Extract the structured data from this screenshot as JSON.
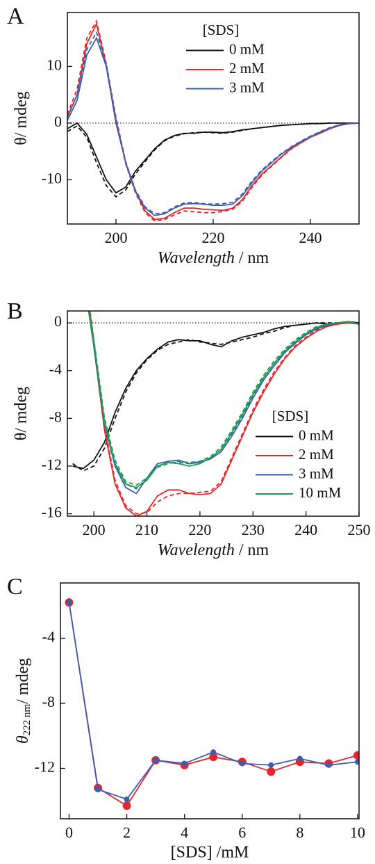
{
  "chart_data": [
    {
      "type": "line",
      "panel": "A",
      "ylabel": "θ/ mdeg",
      "xlabel_parts": [
        "Wavelength",
        "/ nm"
      ],
      "legend_title": "[SDS]",
      "legend": "upper right",
      "zero_line": true,
      "xlim": [
        190,
        250
      ],
      "ylim": [
        -17.8,
        19.5
      ],
      "xticks": [
        200,
        220,
        240
      ],
      "yticks": [
        10,
        0,
        -10
      ],
      "x": [
        190,
        192,
        194,
        196,
        198,
        200,
        202,
        204,
        206,
        208,
        210,
        212,
        214,
        216,
        218,
        220,
        222,
        224,
        226,
        228,
        230,
        232,
        234,
        236,
        238,
        240,
        242,
        244,
        246,
        248,
        250
      ],
      "series": [
        {
          "name": "0 mM",
          "color": "#111111",
          "dash": false,
          "values": [
            -1,
            0,
            -2,
            -6,
            -10,
            -12.3,
            -11.3,
            -8.5,
            -6.5,
            -4.5,
            -3,
            -2.2,
            -1.8,
            -1.8,
            -1.6,
            -1.6,
            -1.7,
            -1.5,
            -1.2,
            -1,
            -0.8,
            -0.6,
            -0.4,
            -0.3,
            -0.2,
            -0.1,
            -0.1,
            0,
            0,
            0,
            0
          ]
        },
        {
          "color": "#111111",
          "dash": true,
          "values": [
            -1.5,
            -0.5,
            -2.5,
            -7,
            -11,
            -13,
            -11.8,
            -9,
            -6.8,
            -4.7,
            -3.1,
            -2.3,
            -1.9,
            -1.7,
            -1.6,
            -1.7,
            -1.8,
            -1.6,
            -1.3,
            -1,
            -0.8,
            -0.6,
            -0.4,
            -0.3,
            -0.2,
            -0.1,
            -0.1,
            0,
            0,
            0,
            0
          ]
        },
        {
          "name": "2 mM",
          "color": "#e8262a",
          "dash": false,
          "values": [
            1,
            5,
            14,
            17.5,
            10,
            0,
            -7,
            -12,
            -15.5,
            -17,
            -16.8,
            -15.8,
            -15,
            -15,
            -15.2,
            -15.3,
            -15.4,
            -15,
            -13.5,
            -11,
            -9,
            -7.5,
            -6,
            -4.5,
            -3.5,
            -2.5,
            -1.8,
            -1,
            -0.4,
            -0.1,
            0
          ]
        },
        {
          "color": "#e8262a",
          "dash": true,
          "values": [
            1.5,
            6,
            15,
            18,
            10.5,
            0.5,
            -7.2,
            -12.3,
            -15.8,
            -17.3,
            -17,
            -16.2,
            -15.5,
            -15.6,
            -15.8,
            -15.8,
            -15.6,
            -15.2,
            -13.8,
            -11.3,
            -9.2,
            -7.6,
            -6.1,
            -4.6,
            -3.5,
            -2.5,
            -1.7,
            -1,
            -0.4,
            -0.1,
            0
          ]
        },
        {
          "name": "3 mM",
          "color": "#3a5fb0",
          "dash": false,
          "values": [
            0.5,
            4,
            12,
            15,
            10,
            0.5,
            -7,
            -12,
            -15,
            -16.3,
            -16,
            -15,
            -14.3,
            -14.2,
            -14.3,
            -14.5,
            -14.5,
            -14.3,
            -12.8,
            -10.5,
            -8.5,
            -7,
            -5.5,
            -4.3,
            -3.3,
            -2.4,
            -1.6,
            -0.9,
            -0.3,
            -0.1,
            0
          ]
        },
        {
          "color": "#3a5fb0",
          "dash": true,
          "values": [
            1,
            5,
            13,
            16,
            10.5,
            1,
            -6.8,
            -11.8,
            -14.8,
            -16,
            -15.8,
            -14.8,
            -14.1,
            -14,
            -14.2,
            -14.3,
            -14.2,
            -14,
            -12.5,
            -10.2,
            -8.3,
            -6.8,
            -5.4,
            -4.2,
            -3.2,
            -2.3,
            -1.5,
            -0.8,
            -0.3,
            -0.1,
            0
          ]
        }
      ]
    },
    {
      "type": "line",
      "panel": "B",
      "ylabel": "θ/ mdeg",
      "xlabel_parts": [
        "Wavelength",
        "/ nm"
      ],
      "legend_title": "[SDS]",
      "legend": "lower right",
      "zero_line": true,
      "xlim": [
        195,
        250
      ],
      "ylim": [
        -16.2,
        1
      ],
      "xticks": [
        200,
        210,
        220,
        230,
        240,
        250
      ],
      "yticks": [
        0,
        -4,
        -8,
        -12,
        -16
      ],
      "x": [
        196,
        198,
        200,
        202,
        204,
        206,
        208,
        210,
        212,
        214,
        216,
        218,
        220,
        222,
        224,
        226,
        228,
        230,
        232,
        234,
        236,
        238,
        240,
        242,
        244,
        246,
        248,
        250
      ],
      "series": [
        {
          "name": "0 mM",
          "color": "#111111",
          "dash": false,
          "values": [
            -12,
            -12.2,
            -11.5,
            -10,
            -7.5,
            -5.5,
            -4,
            -3,
            -2.2,
            -1.6,
            -1.4,
            -1.5,
            -1.5,
            -1.8,
            -2,
            -1.5,
            -1.2,
            -1,
            -0.8,
            -0.5,
            -0.3,
            -0.2,
            -0.1,
            0,
            -0.1,
            0,
            0.1,
            0
          ]
        },
        {
          "color": "#111111",
          "dash": true,
          "values": [
            -11.8,
            -12.4,
            -12,
            -10.5,
            -8,
            -5.8,
            -4.2,
            -3.1,
            -2.3,
            -1.8,
            -1.6,
            -1.4,
            -1.6,
            -1.7,
            -1.8,
            -1.6,
            -1.4,
            -1.2,
            -0.9,
            -0.7,
            -0.4,
            -0.2,
            -0.1,
            0,
            0,
            0,
            0.1,
            0
          ]
        },
        {
          "name": "2 mM",
          "color": "#e8262a",
          "dash": false,
          "values": [
            null,
            5,
            -2,
            -9,
            -13.5,
            -15.5,
            -16.2,
            -15.8,
            -14.5,
            -14,
            -14,
            -14.3,
            -14.4,
            -14.3,
            -13.5,
            -11.5,
            -9.5,
            -7.5,
            -5.8,
            -4.3,
            -3,
            -2,
            -1.3,
            -0.7,
            -0.3,
            -0.1,
            0,
            -0.1
          ]
        },
        {
          "color": "#e8262a",
          "dash": true,
          "values": [
            null,
            5.5,
            -1.5,
            -8.7,
            -13.2,
            -15.3,
            -16,
            -15.9,
            -15,
            -14.5,
            -14.3,
            -14.3,
            -14.2,
            -14.1,
            -13.3,
            -11.3,
            -9.3,
            -7.3,
            -5.6,
            -4.1,
            -2.9,
            -1.9,
            -1.2,
            -0.6,
            -0.2,
            0,
            0.1,
            -0.1
          ]
        },
        {
          "name": "3 mM",
          "color": "#3a5fb0",
          "dash": false,
          "values": [
            null,
            4,
            -2,
            -8.5,
            -12,
            -13.8,
            -14.3,
            -13,
            -11.8,
            -11.6,
            -11.5,
            -11.8,
            -11.7,
            -11.4,
            -10.8,
            -9.5,
            -8,
            -6.3,
            -4.8,
            -3.6,
            -2.5,
            -1.7,
            -1,
            -0.5,
            -0.2,
            0,
            0.1,
            -0.1
          ]
        },
        {
          "color": "#3a5fb0",
          "dash": true,
          "values": [
            null,
            4.5,
            -1.6,
            -8.2,
            -11.8,
            -13.5,
            -13.9,
            -13,
            -12,
            -11.7,
            -11.7,
            -11.8,
            -11.6,
            -11.3,
            -10.6,
            -9.3,
            -7.8,
            -6.1,
            -4.6,
            -3.4,
            -2.3,
            -1.5,
            -0.9,
            -0.4,
            -0.1,
            0,
            0.1,
            -0.1
          ]
        },
        {
          "name": "10 mM",
          "color": "#1aa050",
          "dash": false,
          "values": [
            null,
            4.2,
            -1.8,
            -8.3,
            -11.8,
            -13.5,
            -13.8,
            -13.2,
            -12,
            -11.7,
            -11.8,
            -12,
            -11.8,
            -11.3,
            -10.6,
            -9.2,
            -7.7,
            -6,
            -4.6,
            -3.4,
            -2.4,
            -1.6,
            -0.9,
            -0.4,
            -0.1,
            0,
            0.1,
            -0.1
          ]
        },
        {
          "color": "#1aa050",
          "dash": true,
          "values": [
            null,
            4.6,
            -1.4,
            -8,
            -11.5,
            -13.3,
            -13.6,
            -13,
            -12.1,
            -11.8,
            -11.6,
            -11.7,
            -11.6,
            -11.2,
            -10.4,
            -9,
            -7.5,
            -5.8,
            -4.4,
            -3.2,
            -2.2,
            -1.4,
            -0.8,
            -0.3,
            -0.1,
            0,
            0.1,
            -0.1
          ]
        }
      ]
    },
    {
      "type": "line",
      "panel": "C",
      "ylabel_parts": [
        "θ",
        "222 nm",
        "/ mdeg"
      ],
      "xlabel": "[SDS] /mM",
      "markers": true,
      "xlim": [
        -0.3,
        10.05
      ],
      "ylim": [
        -15.1,
        -0.6
      ],
      "xticks": [
        0,
        2,
        4,
        6,
        8,
        10
      ],
      "yticks": [
        -4,
        -8,
        -12
      ],
      "x": [
        0,
        1,
        2,
        3,
        4,
        5,
        6,
        7,
        8,
        9,
        10
      ],
      "series": [
        {
          "color": "#e8262a",
          "marker_size": 6,
          "values": [
            -1.8,
            -13.2,
            -14.3,
            -11.5,
            -11.8,
            -11.3,
            -11.6,
            -12.2,
            -11.6,
            -11.7,
            -11.2
          ]
        },
        {
          "color": "#3a5fb0",
          "marker_size": 4,
          "values": [
            -1.8,
            -13.3,
            -13.9,
            -11.5,
            -11.7,
            -11,
            -11.7,
            -11.8,
            -11.4,
            -11.8,
            -11.6
          ]
        }
      ]
    }
  ]
}
